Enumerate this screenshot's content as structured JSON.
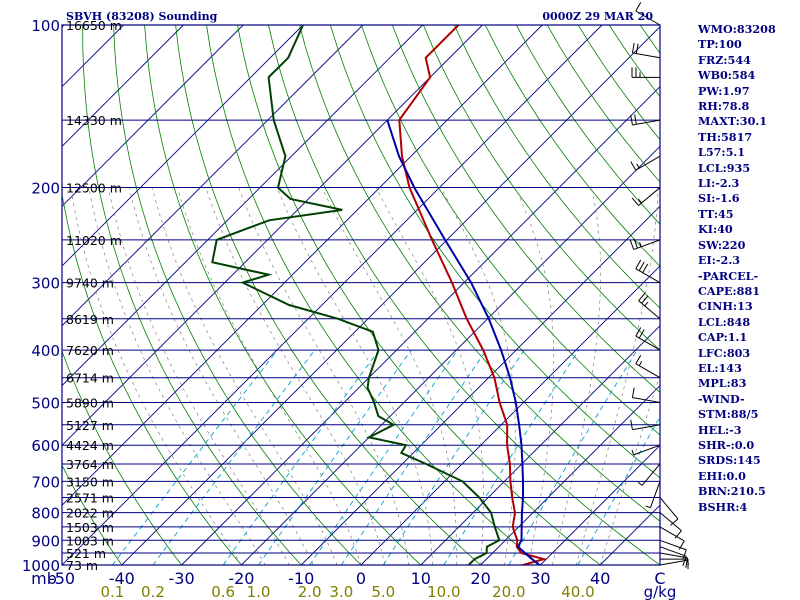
{
  "header": {
    "station": "SBVH (83208) Sounding",
    "time": "0000Z 29 MAR 20"
  },
  "chart_data": {
    "type": "line",
    "title": "SBVH (83208) Sounding",
    "subtitle": "0000Z 29 MAR 20",
    "xlabel": "",
    "ylabel": "",
    "x_tick_labels": [
      "mb",
      "-50",
      "-40",
      "-30",
      "-20",
      "-10",
      "0",
      "10",
      "20",
      "30",
      "40",
      "C"
    ],
    "pressure_labels": [
      "100",
      "200",
      "300",
      "400",
      "500",
      "600",
      "700",
      "800",
      "900",
      "1000"
    ],
    "mixing_ratio_labels": [
      "0.1",
      "0.2",
      "0.6",
      "1.0",
      "2.0",
      "3.0",
      "5.0",
      "10.0",
      "20.0",
      "40.0",
      "g/kg"
    ],
    "height_labels": [
      {
        "p": 100,
        "text": "16650 m"
      },
      {
        "p": 150,
        "text": "14330 m"
      },
      {
        "p": 200,
        "text": "12500 m"
      },
      {
        "p": 250,
        "text": "11020 m"
      },
      {
        "p": 300,
        "text": "9740 m"
      },
      {
        "p": 350,
        "text": "8619 m"
      },
      {
        "p": 400,
        "text": "7620 m"
      },
      {
        "p": 450,
        "text": "6714 m"
      },
      {
        "p": 500,
        "text": "5890 m"
      },
      {
        "p": 550,
        "text": "5127 m"
      },
      {
        "p": 600,
        "text": "4424 m"
      },
      {
        "p": 650,
        "text": "3764 m"
      },
      {
        "p": 700,
        "text": "3150 m"
      },
      {
        "p": 750,
        "text": "2571 m"
      },
      {
        "p": 800,
        "text": "2022 m"
      },
      {
        "p": 850,
        "text": "1503 m"
      },
      {
        "p": 900,
        "text": "1003 m"
      },
      {
        "p": 950,
        "text": "521 m"
      },
      {
        "p": 1000,
        "text": "73 m"
      }
    ],
    "axes": {
      "p_range": [
        100,
        1000
      ],
      "t_range_at_1000": [
        -50,
        50
      ],
      "p_scale": "log"
    },
    "series": [
      {
        "role": "temperature",
        "color": "#b00000",
        "p": [
          1003,
          975,
          950,
          925,
          900,
          850,
          800,
          750,
          700,
          650,
          600,
          550,
          500,
          450,
          400,
          350,
          300,
          250,
          200,
          175,
          150,
          125,
          115,
          100
        ],
        "t": [
          26.8,
          29.6,
          24.8,
          23.0,
          22.0,
          19.0,
          17.0,
          14.0,
          11.0,
          8.0,
          4.4,
          1.0,
          -4.0,
          -9.0,
          -15.5,
          -23.5,
          -32.0,
          -42.5,
          -55.0,
          -61.5,
          -68.0,
          -70.0,
          -74.0,
          -74.0
        ]
      },
      {
        "role": "dewpoint",
        "color": "#004000",
        "p": [
          1003,
          975,
          950,
          925,
          900,
          850,
          800,
          750,
          700,
          650,
          620,
          600,
          580,
          550,
          530,
          500,
          470,
          450,
          400,
          370,
          350,
          330,
          300,
          290,
          275,
          250,
          230,
          220,
          210,
          200,
          175,
          150,
          125,
          115,
          100
        ],
        "t": [
          18.0,
          18.0,
          19.0,
          18.0,
          19.0,
          16.0,
          13.0,
          8.5,
          3.0,
          -6.0,
          -12.0,
          -12.5,
          -20.0,
          -18.0,
          -22.0,
          -25.0,
          -28.5,
          -30.0,
          -33.0,
          -37.0,
          -45.0,
          -55.5,
          -67.0,
          -64.0,
          -75.5,
          -78.5,
          -73.0,
          -62.5,
          -73.0,
          -77.0,
          -81.0,
          -89.0,
          -97.0,
          -97.0,
          -100.0
        ]
      },
      {
        "role": "parcel",
        "color": "#0000aa",
        "p": [
          1003,
          975,
          950,
          925,
          900,
          848,
          803,
          750,
          700,
          650,
          600,
          550,
          500,
          450,
          400,
          350,
          300,
          250,
          200,
          175,
          150
        ],
        "t": [
          30.1,
          27.6,
          25.4,
          23.2,
          22.7,
          20.4,
          18.3,
          15.8,
          13.1,
          10.1,
          6.8,
          3.0,
          -1.3,
          -6.4,
          -12.5,
          -19.8,
          -28.8,
          -40.3,
          -54.2,
          -62.0,
          -70.0
        ]
      }
    ],
    "wind": {
      "p": [
        1000,
        975,
        950,
        925,
        900,
        850,
        800,
        750,
        700,
        650,
        600,
        550,
        500,
        450,
        400,
        350,
        300,
        250,
        200,
        175,
        150,
        125,
        115,
        100
      ],
      "dir": [
        80,
        90,
        100,
        110,
        110,
        120,
        130,
        140,
        200,
        220,
        250,
        260,
        280,
        300,
        300,
        310,
        300,
        250,
        230,
        240,
        260,
        270,
        280,
        300
      ],
      "spd": [
        5,
        10,
        10,
        10,
        10,
        10,
        10,
        10,
        5,
        5,
        5,
        10,
        10,
        15,
        20,
        25,
        30,
        25,
        15,
        15,
        20,
        25,
        20,
        10
      ]
    }
  },
  "params": [
    "WMO:83208",
    "TP:100",
    "FRZ:544",
    "WB0:584",
    "PW:1.97",
    "RH:78.8",
    "MAXT:30.1",
    "TH:5817",
    "L57:5.1",
    "LCL:935",
    "LI:-2.3",
    "SI:-1.6",
    "TT:45",
    "KI:40",
    "SW:220",
    "EI:-2.3",
    "-PARCEL-",
    "CAPE:881",
    "CINH:13",
    "LCL:848",
    "CAP:1.1",
    "LFC:803",
    "EL:143",
    "MPL:83",
    "-WIND-",
    "STM:88/5",
    "HEL:-3",
    "SHR-:0.0",
    "SRDS:145",
    "EHI:0.0",
    "BRN:210.5",
    "BSHR:4"
  ],
  "colors": {
    "frame": "#000080",
    "isotherm": "#000080",
    "dry_adiabat": "#008000",
    "moist_adiabat": "#20a020",
    "mixing_ratio": "#00a0d0",
    "saturation": "#808080"
  }
}
